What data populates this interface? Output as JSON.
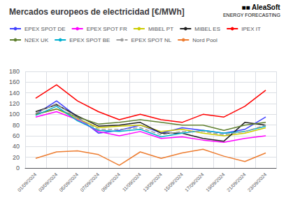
{
  "chart_data": {
    "type": "line",
    "title": "Mercados europeos de electricidad [€/MWh]",
    "categories": [
      "01/09/2024",
      "03/09/2024",
      "05/09/2024",
      "07/09/2024",
      "09/09/2024",
      "11/09/2024",
      "13/09/2024",
      "15/09/2024",
      "17/09/2024",
      "19/09/2024",
      "21/09/2024",
      "23/09/2024"
    ],
    "series": [
      {
        "name": "EPEX SPOT DE",
        "color": "#4040ff",
        "line_style": "solid",
        "values": [
          100,
          125,
          95,
          65,
          70,
          80,
          65,
          75,
          70,
          65,
          72,
          95
        ]
      },
      {
        "name": "EPEX SPOT FR",
        "color": "#ff00ff",
        "line_style": "solid",
        "values": [
          95,
          105,
          90,
          68,
          60,
          68,
          55,
          58,
          52,
          48,
          55,
          60
        ]
      },
      {
        "name": "MIBEL PT",
        "color": "#cccc00",
        "line_style": "solid",
        "values": [
          100,
          110,
          92,
          75,
          78,
          80,
          68,
          72,
          65,
          60,
          65,
          75
        ]
      },
      {
        "name": "MIBEL ES",
        "color": "#202020",
        "line_style": "solid",
        "values": [
          105,
          118,
          97,
          78,
          80,
          85,
          65,
          65,
          55,
          50,
          85,
          80
        ]
      },
      {
        "name": "IPEX IT",
        "color": "#ff0000",
        "line_style": "solid",
        "values": [
          130,
          155,
          125,
          105,
          90,
          100,
          90,
          85,
          100,
          95,
          115,
          145
        ]
      },
      {
        "name": "N2EX UK",
        "color": "#608030",
        "line_style": "solid",
        "values": [
          100,
          110,
          95,
          82,
          85,
          90,
          85,
          80,
          80,
          70,
          80,
          85
        ]
      },
      {
        "name": "EPEX SPOT BE",
        "color": "#00b0d0",
        "line_style": "solid",
        "values": [
          98,
          115,
          88,
          70,
          68,
          72,
          58,
          65,
          70,
          65,
          68,
          78
        ]
      },
      {
        "name": "EPEX SPOT NL",
        "color": "#a0a0a0",
        "line_style": "dashed",
        "values": [
          102,
          120,
          92,
          72,
          72,
          75,
          62,
          68,
          68,
          62,
          68,
          80
        ]
      },
      {
        "name": "Nord Pool",
        "color": "#ed7d31",
        "line_style": "solid",
        "values": [
          18,
          30,
          32,
          25,
          5,
          30,
          18,
          28,
          35,
          22,
          12,
          28
        ]
      }
    ],
    "ylim": [
      0,
      180
    ],
    "yticks": [
      0,
      20,
      40,
      60,
      80,
      100,
      120,
      140,
      160,
      180
    ],
    "grid": true,
    "legend": "top",
    "annotations": [
      "■■ AleaSoft",
      "ENERGY FORECASTING"
    ]
  }
}
